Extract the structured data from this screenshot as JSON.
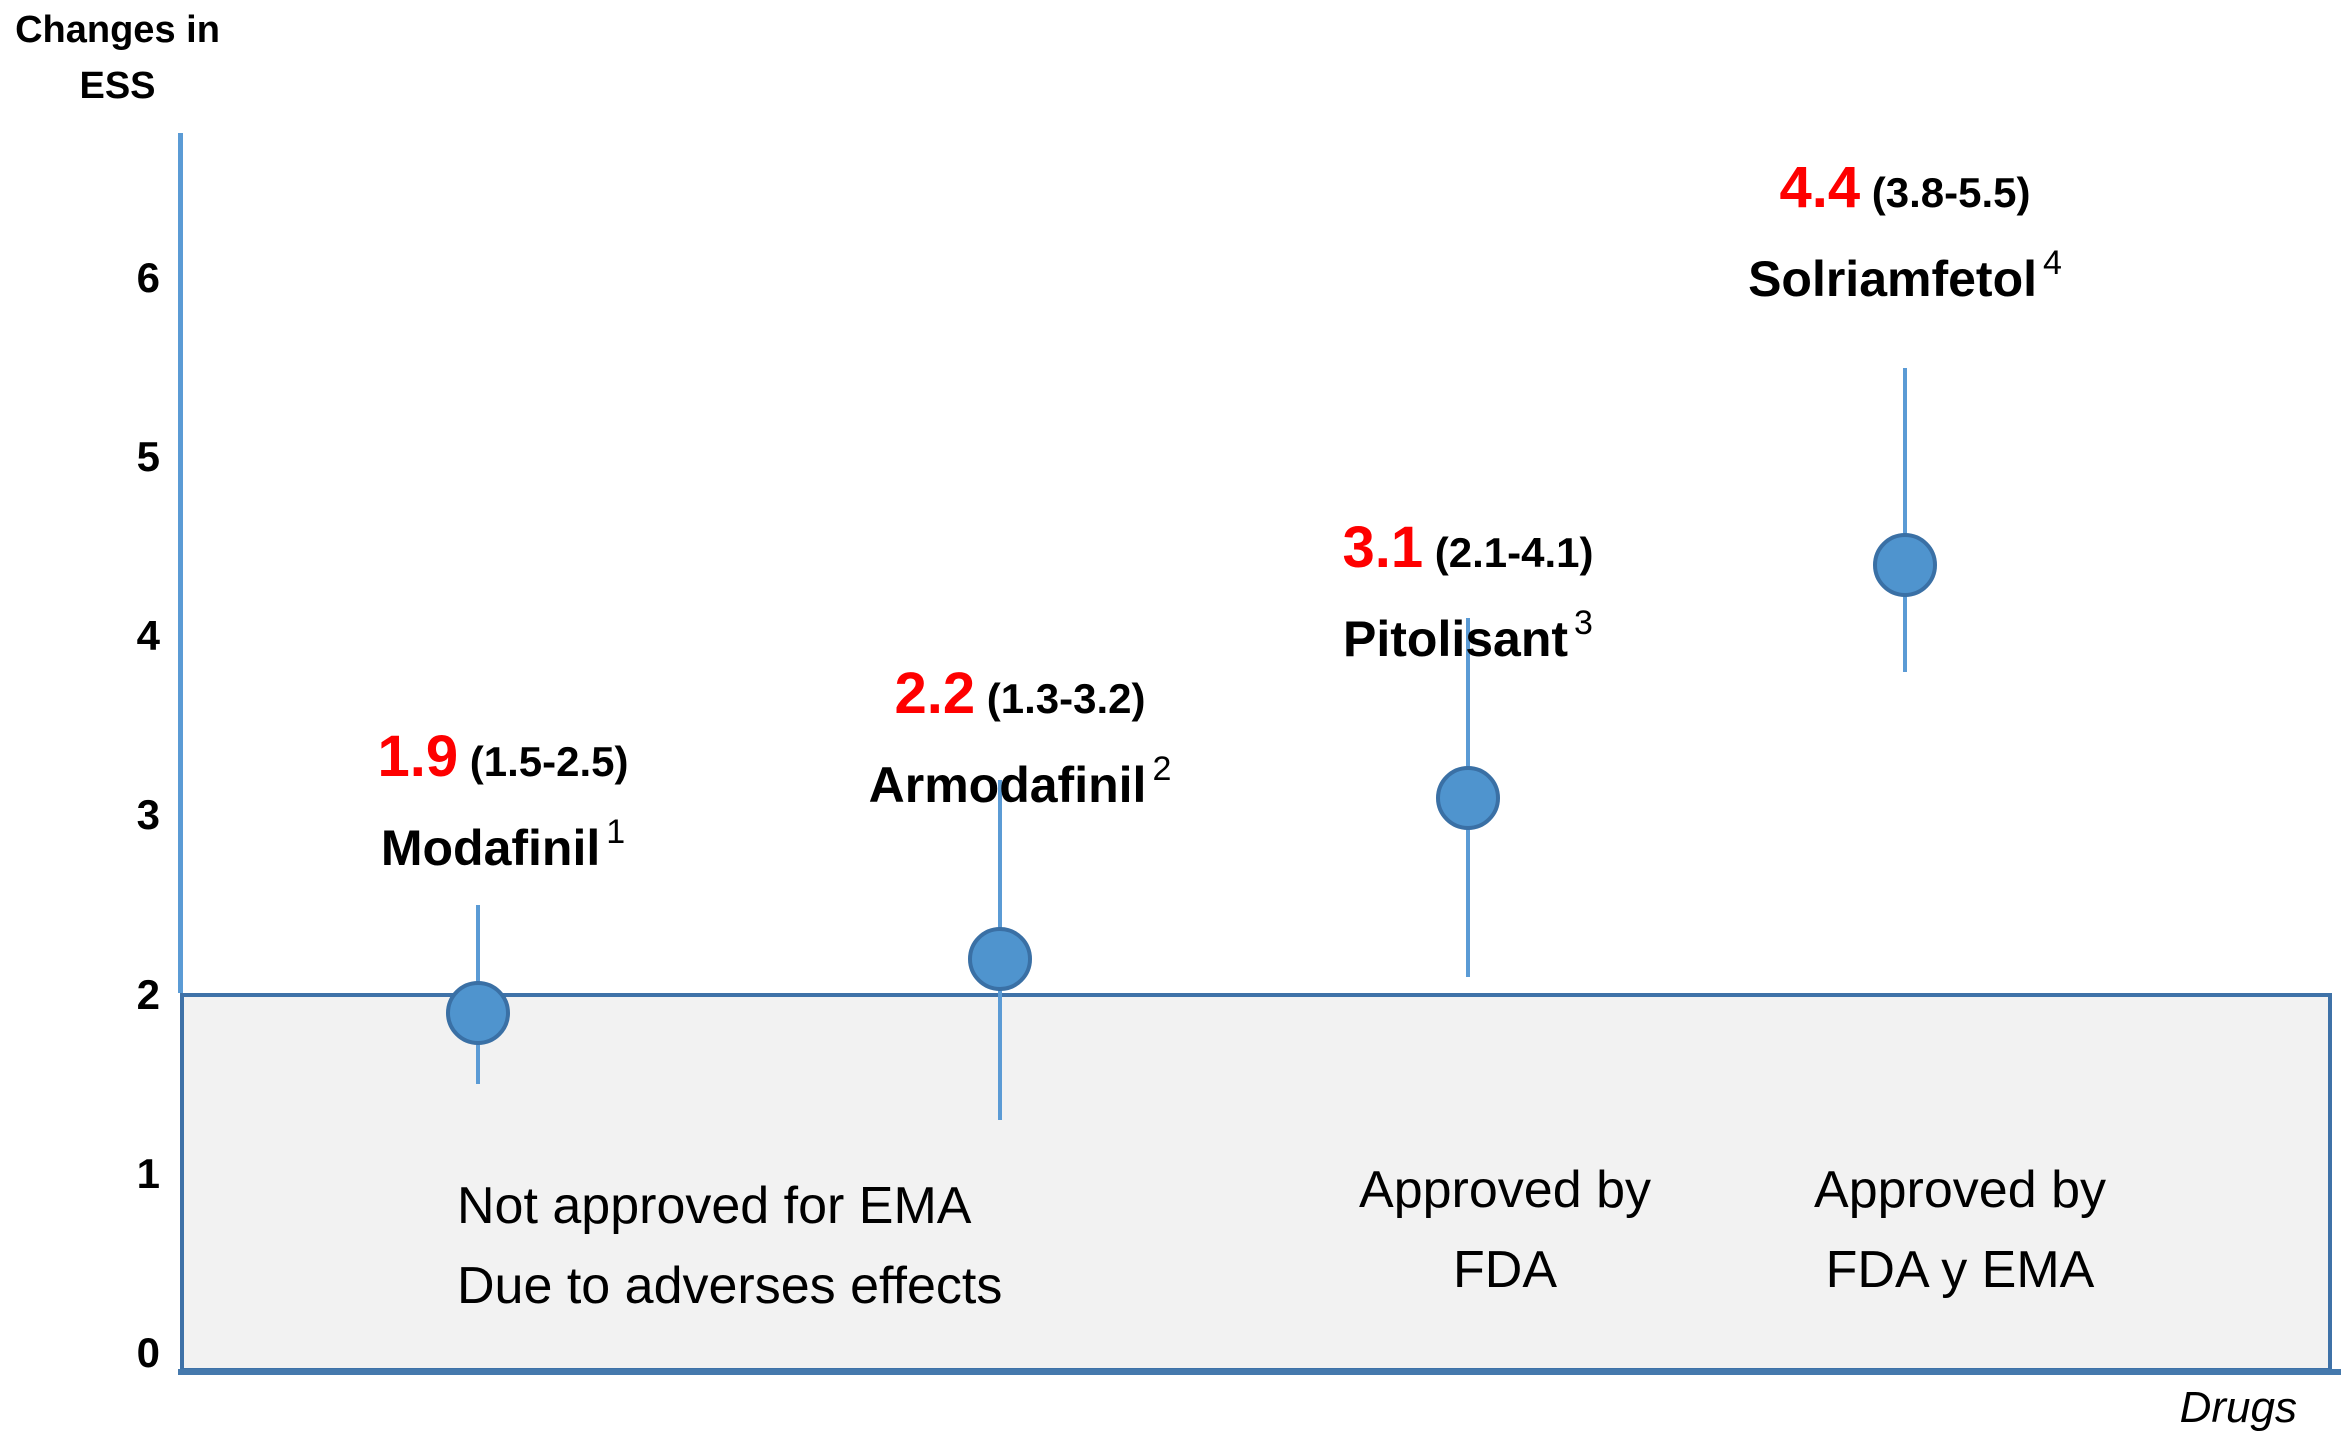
{
  "chart_data": {
    "type": "scatter",
    "title": "",
    "ylabel": "Changes in ESS",
    "ylabel_lines": [
      "Changes in",
      "ESS"
    ],
    "xlabel": "Drugs",
    "ylim": [
      0,
      6.8
    ],
    "yticks": [
      6,
      5,
      4,
      3,
      2,
      1,
      0
    ],
    "grid": false,
    "shaded_region": {
      "from": 0,
      "to": 2,
      "fill": "#f2f2f2",
      "border": "#3f72a8"
    },
    "categories": [
      "Modafinil",
      "Armodafinil",
      "Pitolisant",
      "Solriamfetol"
    ],
    "series": [
      {
        "name": "Changes in ESS",
        "points": [
          {
            "drug": "Modafinil",
            "superscript": "1",
            "value": 1.9,
            "ci_low": 1.5,
            "ci_high": 2.5,
            "value_label": "1.9",
            "ci_label": "(1.5-2.5)"
          },
          {
            "drug": "Armodafinil",
            "superscript": "2",
            "value": 2.2,
            "ci_low": 1.3,
            "ci_high": 3.2,
            "value_label": "2.2",
            "ci_label": "(1.3-3.2)"
          },
          {
            "drug": "Pitolisant",
            "superscript": "3",
            "value": 3.1,
            "ci_low": 2.1,
            "ci_high": 4.1,
            "value_label": "3.1",
            "ci_label": "(2.1-4.1)"
          },
          {
            "drug": "Solriamfetol",
            "superscript": "4",
            "value": 4.4,
            "ci_low": 3.8,
            "ci_high": 5.5,
            "value_label": "4.4",
            "ci_label": "(3.8-5.5)"
          }
        ]
      }
    ],
    "annotations": [
      {
        "id": "not-approved-ema",
        "lines": [
          "Not approved for EMA",
          "Due to adverses effects"
        ]
      },
      {
        "id": "approved-fda",
        "lines": [
          "Approved by",
          "FDA"
        ]
      },
      {
        "id": "approved-fda-ema",
        "lines": [
          "Approved by",
          "FDA y EMA"
        ]
      }
    ],
    "colors": {
      "point_fill": "#4f94ce",
      "point_border": "#3a70a5",
      "error_bar": "#5b9bd5",
      "axis_light": "#5b9bd5",
      "axis_dark": "#3f72a8",
      "value_red": "#fe0000",
      "shaded_fill": "#f2f2f2",
      "text": "#000000"
    }
  }
}
